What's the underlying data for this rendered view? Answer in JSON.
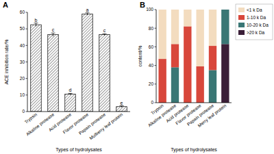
{
  "chart_data": [
    {
      "type": "bar",
      "title": "A",
      "x_label": "Types of hydrolysates",
      "y_label": "ACE inhibition rate/%",
      "categories": [
        "Trypsin",
        "Alkaline protease",
        "Acid protease",
        "Flavor protease",
        "Papain protease",
        "Mulberry leaf protein"
      ],
      "values": [
        52.5,
        46.5,
        10.5,
        59,
        46.5,
        3
      ],
      "errors": [
        1,
        1,
        0.5,
        0.7,
        0.5,
        0.5
      ],
      "annotations": [
        "b",
        "c",
        "d",
        "a",
        "c",
        "e"
      ],
      "color": "#000000",
      "ylim": [
        0,
        60
      ],
      "yticks": [
        0,
        10,
        20,
        30,
        40,
        50,
        60
      ]
    },
    {
      "type": "bar",
      "title": "B",
      "x_label": "Types of hydrolysates",
      "y_label": "content/%",
      "stacked": true,
      "legend": "right",
      "categories": [
        "Trypsin",
        "Alkaline protease",
        "Acid protease",
        "Flavor protease",
        "Papain protease",
        "Merry leaf protein"
      ],
      "series": [
        {
          "name": ">20 k Da",
          "color": "#3b1f38",
          "values": [
            0,
            0,
            0,
            0,
            0,
            63
          ]
        },
        {
          "name": "10-20 k Da",
          "color": "#3a7775",
          "values": [
            0,
            38,
            0,
            0,
            35,
            37
          ]
        },
        {
          "name": "1-10 k Da",
          "color": "#d8473b",
          "values": [
            47,
            25,
            82,
            39,
            26,
            0
          ]
        },
        {
          "name": "<1 k Da",
          "color": "#f3dcbf",
          "values": [
            53,
            37,
            18,
            61,
            39,
            0
          ]
        }
      ],
      "ylim": [
        0,
        100
      ],
      "yticks": [
        0,
        20,
        40,
        60,
        80,
        100
      ]
    }
  ]
}
